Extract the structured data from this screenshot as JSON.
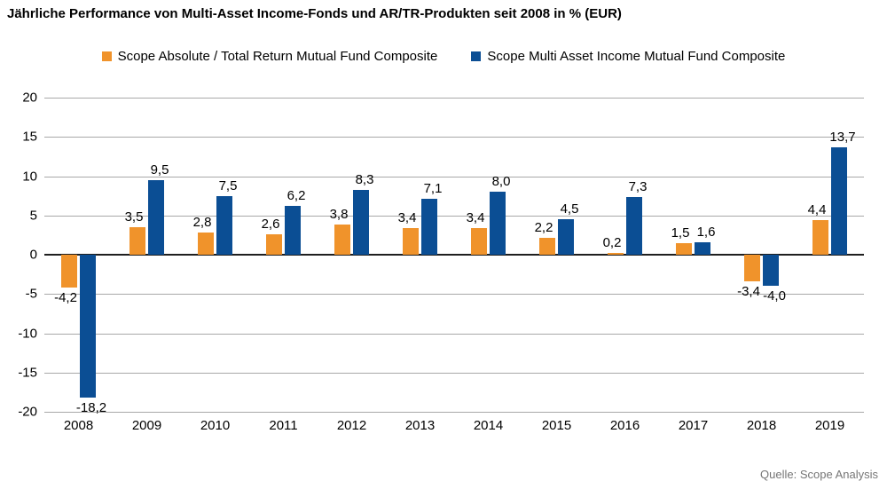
{
  "title": "Jährliche Performance von Multi-Asset Income-Fonds und AR/TR-Produkten seit 2008 in % (EUR)",
  "source": "Quelle: Scope Analysis",
  "colors": {
    "series_absolute_return": "#f0932b",
    "series_multi_asset_income": "#0b4e94",
    "gridline": "#a8a8a8",
    "zero_axis": "#1f1f1f",
    "source_text": "#767676"
  },
  "legend": {
    "items": [
      {
        "label": "Scope Absolute / Total Return Mutual Fund Composite",
        "color": "#f0932b"
      },
      {
        "label": "Scope Multi Asset Income Mutual Fund Composite",
        "color": "#0b4e94"
      }
    ]
  },
  "chart_data": {
    "type": "bar",
    "title": "Jährliche Performance von Multi-Asset Income-Fonds und AR/TR-Produkten seit 2008 in % (EUR)",
    "categories": [
      "2008",
      "2009",
      "2010",
      "2011",
      "2012",
      "2013",
      "2014",
      "2015",
      "2016",
      "2017",
      "2018",
      "2019"
    ],
    "series": [
      {
        "name": "Scope Absolute / Total Return Mutual Fund Composite",
        "color": "#f0932b",
        "values": [
          -4.2,
          3.5,
          2.8,
          2.6,
          3.8,
          3.4,
          3.4,
          2.2,
          0.2,
          1.5,
          -3.4,
          4.4
        ],
        "labels": [
          "-4,2",
          "3,5",
          "2,8",
          "2,6",
          "3,8",
          "3,4",
          "3,4",
          "2,2",
          "0,2",
          "1,5",
          "-3,4",
          "4,4"
        ]
      },
      {
        "name": "Scope Multi Asset Income Mutual Fund Composite",
        "color": "#0b4e94",
        "values": [
          -18.2,
          9.5,
          7.5,
          6.2,
          8.3,
          7.1,
          8.0,
          4.5,
          7.3,
          1.6,
          -4.0,
          13.7
        ],
        "labels": [
          "-18,2",
          "9,5",
          "7,5",
          "6,2",
          "8,3",
          "7,1",
          "8,0",
          "4,5",
          "7,3",
          "1,6",
          "-4,0",
          "13,7"
        ]
      }
    ],
    "xlabel": "",
    "ylabel": "",
    "ylim": [
      -20,
      20
    ],
    "ytick_step": 5,
    "yticks": [
      20,
      15,
      10,
      5,
      0,
      -5,
      -10,
      -15,
      -20
    ],
    "grid": true,
    "legend_position": "top",
    "value_label_format": "german-decimal-comma-1dp",
    "source": "Quelle: Scope Analysis"
  }
}
